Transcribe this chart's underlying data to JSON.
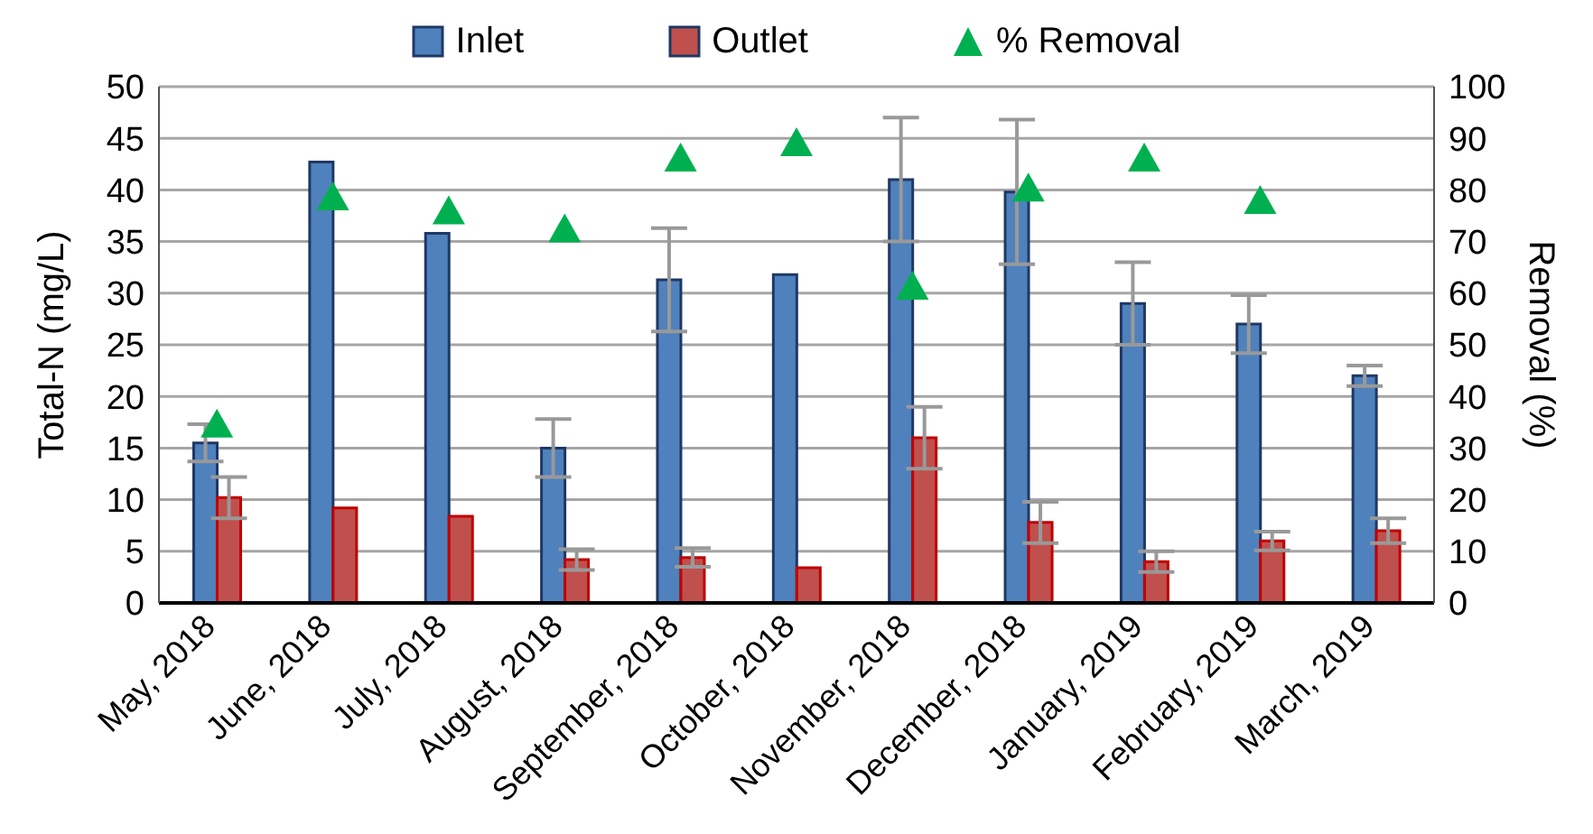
{
  "chart_data": {
    "type": "bar",
    "ylabel": "Total-N (mg/L)",
    "y2label": "Removal (%)",
    "categories": [
      "May, 2018",
      "June, 2018",
      "July, 2018",
      "August, 2018",
      "September, 2018",
      "October, 2018",
      "November, 2018",
      "December, 2018",
      "January, 2019",
      "February, 2019",
      "March, 2019"
    ],
    "series": [
      {
        "name": "Inlet",
        "color": "#4f81bd",
        "values": [
          15.5,
          42.7,
          35.8,
          15,
          31.3,
          31.8,
          41,
          39.8,
          29,
          27,
          22
        ],
        "errors": [
          1.8,
          null,
          null,
          2.8,
          5,
          null,
          6,
          7,
          4,
          2.8,
          1
        ]
      },
      {
        "name": "Outlet",
        "color": "#c0504d",
        "values": [
          10.2,
          9.2,
          8.4,
          4.2,
          4.4,
          3.4,
          16,
          7.8,
          4,
          6,
          7
        ],
        "errors": [
          2,
          null,
          null,
          1,
          0.9,
          null,
          3,
          2,
          1,
          0.9,
          1.2
        ]
      },
      {
        "name": "% Removal",
        "type": "scatter",
        "axis": "y2",
        "marker": "triangle",
        "color": "#00b050",
        "values": [
          34.5,
          78.5,
          75.8,
          72.3,
          86,
          89,
          61.2,
          80.2,
          86,
          77.8,
          null
        ]
      }
    ],
    "ylim": [
      0,
      50
    ],
    "yticks": [
      0,
      5,
      10,
      15,
      20,
      25,
      30,
      35,
      40,
      45,
      50
    ],
    "y2lim": [
      0,
      100
    ],
    "y2ticks": [
      0,
      10,
      20,
      30,
      40,
      50,
      60,
      70,
      80,
      90,
      100
    ],
    "grid": "y",
    "legend": "top"
  }
}
